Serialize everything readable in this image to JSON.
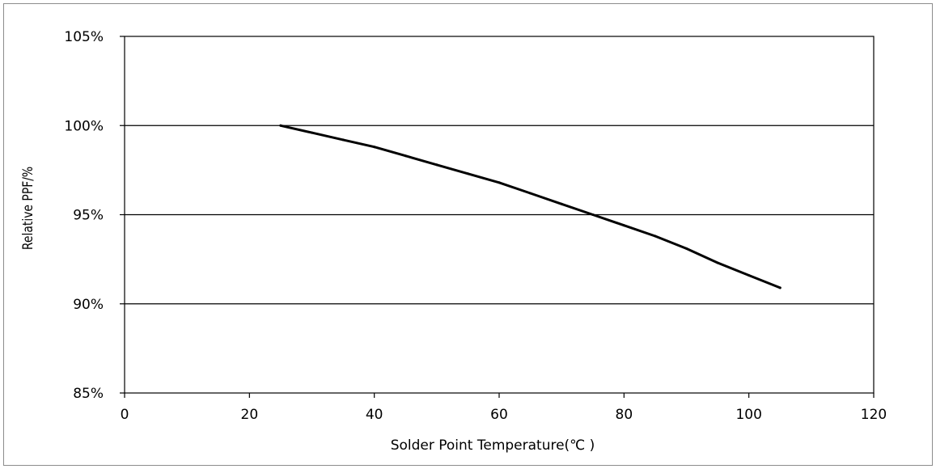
{
  "chart_data": {
    "type": "line",
    "title": "",
    "xlabel": "Solder Point Temperature(℃ )",
    "ylabel": "Relative PPF/%",
    "xlim": [
      0,
      120
    ],
    "ylim": [
      85,
      105
    ],
    "x_ticks": [
      0,
      20,
      40,
      60,
      80,
      100,
      120
    ],
    "x_tick_labels": [
      "0",
      "20",
      "40",
      "60",
      "80",
      "100",
      "120"
    ],
    "y_ticks": [
      85,
      90,
      95,
      100,
      105
    ],
    "y_tick_labels": [
      "85%",
      "90%",
      "95%",
      "100%",
      "105%"
    ],
    "grid": "horizontal",
    "legend": "none",
    "series": [
      {
        "color": "#000000",
        "points": [
          {
            "x": 25,
            "y": 100.0
          },
          {
            "x": 30,
            "y": 99.6
          },
          {
            "x": 35,
            "y": 99.2
          },
          {
            "x": 40,
            "y": 98.8
          },
          {
            "x": 45,
            "y": 98.3
          },
          {
            "x": 50,
            "y": 97.8
          },
          {
            "x": 55,
            "y": 97.3
          },
          {
            "x": 60,
            "y": 96.8
          },
          {
            "x": 65,
            "y": 96.2
          },
          {
            "x": 70,
            "y": 95.6
          },
          {
            "x": 75,
            "y": 95.0
          },
          {
            "x": 80,
            "y": 94.4
          },
          {
            "x": 85,
            "y": 93.8
          },
          {
            "x": 90,
            "y": 93.1
          },
          {
            "x": 95,
            "y": 92.3
          },
          {
            "x": 100,
            "y": 91.6
          },
          {
            "x": 105,
            "y": 90.9
          }
        ]
      }
    ]
  }
}
